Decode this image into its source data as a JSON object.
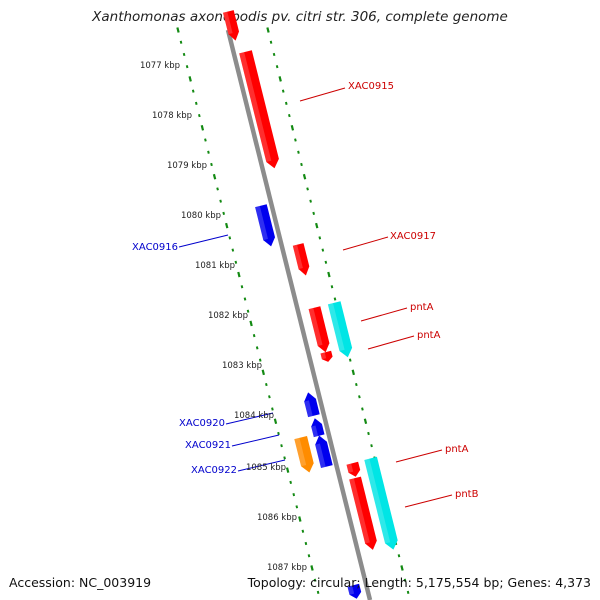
{
  "title": "Xanthomonas axonopodis pv. citri str. 306, complete genome",
  "footer": {
    "accession": "Accession: NC_003919",
    "topology": "Topology: circular; Length: 5,175,554 bp; Genes: 4,373"
  },
  "colors": {
    "backbone": "#8c8c8c",
    "ruler": "#138a13",
    "forward_cds": "#ff0000",
    "reverse_cds": "#0000ee",
    "rna_or_other": "#00e5e5",
    "other_reverse": "#ff8c00",
    "forward_label": "#cc0000",
    "reverse_label": "#0000cc"
  },
  "scale_labels": [
    "1077 kbp",
    "1078 kbp",
    "1079 kbp",
    "1080 kbp",
    "1081 kbp",
    "1082 kbp",
    "1083 kbp",
    "1084 kbp",
    "1085 kbp",
    "1086 kbp",
    "1087 kbp"
  ],
  "forward_labels": [
    "XAC0915",
    "XAC0917",
    "pntA",
    "pntA",
    "pntA",
    "pntB"
  ],
  "reverse_labels": [
    "XAC0916",
    "XAC0920",
    "XAC0921",
    "XAC0922"
  ]
}
